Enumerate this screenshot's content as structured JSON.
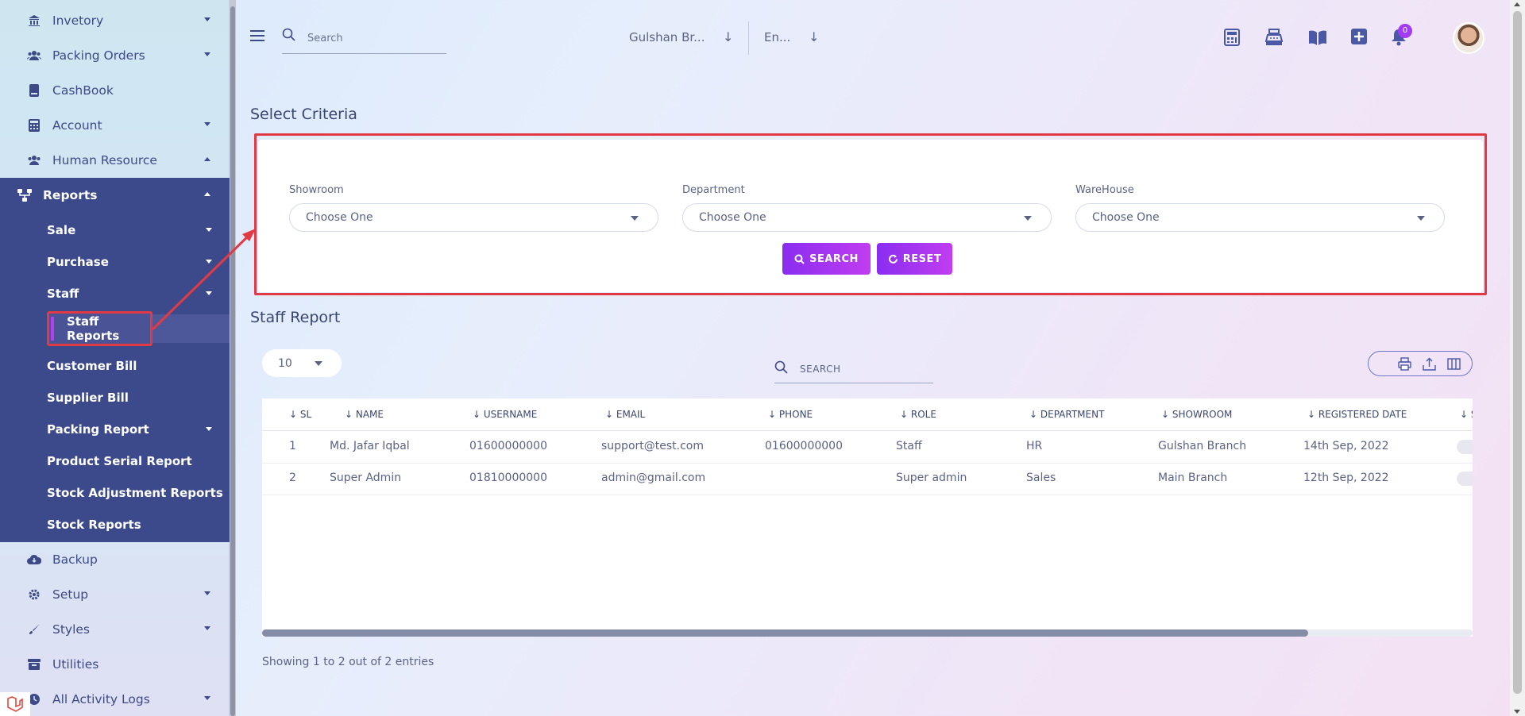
{
  "sidebar": {
    "items": [
      {
        "label": "Invetory",
        "icon": "bank-icon",
        "caret": "down"
      },
      {
        "label": "Packing Orders",
        "icon": "users-icon",
        "caret": "down"
      },
      {
        "label": "CashBook",
        "icon": "book-icon",
        "caret": ""
      },
      {
        "label": "Account",
        "icon": "calculator-icon",
        "caret": "down"
      },
      {
        "label": "Human Resource",
        "icon": "users-icon",
        "caret": "up"
      }
    ],
    "reports": {
      "label": "Reports",
      "icon": "sitemap-icon",
      "sub_items": [
        {
          "label": "Sale",
          "caret": "down"
        },
        {
          "label": "Purchase",
          "caret": "down"
        },
        {
          "label": "Staff",
          "caret": "down"
        },
        {
          "label": "Staff Reports",
          "active": true
        },
        {
          "label": "Customer Bill"
        },
        {
          "label": "Supplier Bill"
        },
        {
          "label": "Packing Report",
          "caret": "down"
        },
        {
          "label": "Product Serial Report"
        },
        {
          "label": "Stock Adjustment Reports"
        },
        {
          "label": "Stock Reports"
        }
      ]
    },
    "bottom_items": [
      {
        "label": "Backup",
        "icon": "cloud-download-icon"
      },
      {
        "label": "Setup",
        "icon": "gear-icon",
        "caret": "down"
      },
      {
        "label": "Styles",
        "icon": "brush-icon",
        "caret": "down"
      },
      {
        "label": "Utilities",
        "icon": "archive-icon"
      },
      {
        "label": "All Activity Logs",
        "icon": "log-icon",
        "caret": "down"
      }
    ]
  },
  "header": {
    "search_placeholder": "Search",
    "branch": "Gulshan Br...",
    "language": "En...",
    "notification_count": "0"
  },
  "criteria": {
    "title": "Select Criteria",
    "fields": [
      {
        "label": "Showroom",
        "value": "Choose One"
      },
      {
        "label": "Department",
        "value": "Choose One"
      },
      {
        "label": "WareHouse",
        "value": "Choose One"
      }
    ],
    "search_button": "SEARCH",
    "reset_button": "RESET"
  },
  "report": {
    "title": "Staff Report",
    "page_size": "10",
    "search_label": "SEARCH",
    "columns": [
      "SL",
      "NAME",
      "USERNAME",
      "EMAIL",
      "PHONE",
      "ROLE",
      "DEPARTMENT",
      "SHOWROOM",
      "REGISTERED DATE",
      "S"
    ],
    "rows": [
      {
        "sl": "1",
        "name": "Md. Jafar Iqbal",
        "username": "01600000000",
        "email": "support@test.com",
        "phone": "01600000000",
        "role": "Staff",
        "department": "HR",
        "showroom": "Gulshan Branch",
        "registered": "14th Sep, 2022"
      },
      {
        "sl": "2",
        "name": "Super Admin",
        "username": "01810000000",
        "email": "admin@gmail.com",
        "phone": "",
        "role": "Super admin",
        "department": "Sales",
        "showroom": "Main Branch",
        "registered": "12th Sep, 2022"
      }
    ],
    "footer": "Showing 1 to 2 out of 2 entries"
  },
  "colors": {
    "sidebar_active": "#3c4a8c",
    "accent": "#a13cf3",
    "highlight": "#e23a44"
  }
}
